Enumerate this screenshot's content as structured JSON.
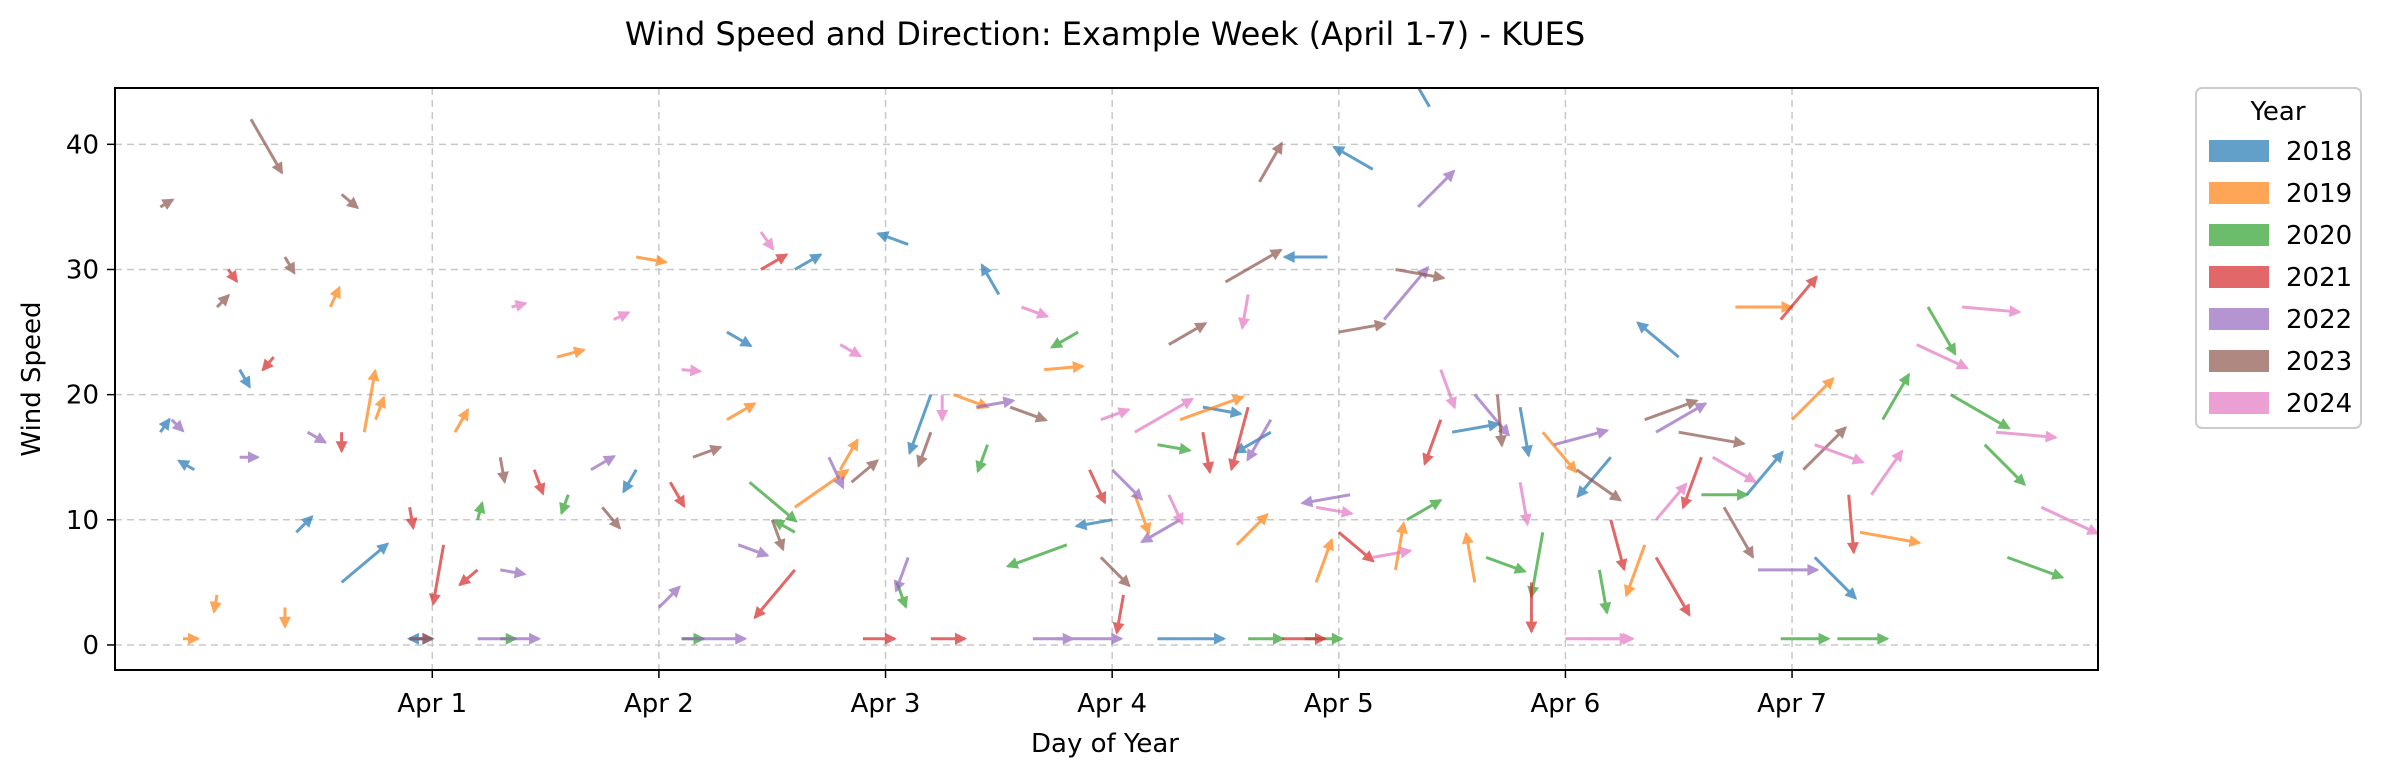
{
  "chart_data": {
    "type": "quiver",
    "title": "Wind Speed and Direction: Example Week (April 1-7) - KUES",
    "xlabel": "Day of Year",
    "ylabel": "Wind Speed",
    "xlim": [
      -1.4,
      7.35
    ],
    "ylim": [
      -2,
      44.5
    ],
    "x_ticks": [
      {
        "value": 0,
        "label": "Apr 1"
      },
      {
        "value": 1,
        "label": "Apr 2"
      },
      {
        "value": 2,
        "label": "Apr 3"
      },
      {
        "value": 3,
        "label": "Apr 4"
      },
      {
        "value": 4,
        "label": "Apr 5"
      },
      {
        "value": 5,
        "label": "Apr 6"
      },
      {
        "value": 6,
        "label": "Apr 7"
      }
    ],
    "y_ticks": [
      0,
      10,
      20,
      30,
      40
    ],
    "grid": true,
    "legend": {
      "title": "Year",
      "placement": "outside-right"
    },
    "series": [
      {
        "name": "2018",
        "color": "#1f77b4",
        "points": [
          [
            -1.2,
            17,
            35,
            0.5
          ],
          [
            -1.05,
            14,
            300,
            1.1
          ],
          [
            -0.85,
            22,
            150,
            1.7
          ],
          [
            -0.6,
            9,
            45,
            2.3
          ],
          [
            0.0,
            0.5,
            270,
            2.6
          ],
          [
            0.9,
            14,
            210,
            3.2
          ],
          [
            1.3,
            25,
            120,
            3.8
          ],
          [
            1.6,
            30,
            60,
            4.4
          ],
          [
            2.1,
            32,
            290,
            5.0
          ],
          [
            2.5,
            28,
            330,
            5.6
          ],
          [
            3.0,
            10,
            260,
            6.2
          ],
          [
            3.4,
            19,
            100,
            6.8
          ],
          [
            3.7,
            17,
            240,
            7.4
          ],
          [
            3.95,
            31,
            270,
            8.0
          ],
          [
            4.15,
            38,
            300,
            8.6
          ],
          [
            4.5,
            17,
            80,
            9.2
          ],
          [
            4.8,
            19,
            170,
            9.8
          ],
          [
            5.2,
            15,
            220,
            10.4
          ],
          [
            5.5,
            23,
            310,
            11.0
          ],
          [
            5.8,
            12,
            40,
            11.6
          ],
          [
            6.1,
            7,
            135,
            12.2
          ],
          [
            -0.4,
            5,
            50,
            12.8
          ],
          [
            2.2,
            20,
            200,
            13.4
          ],
          [
            4.4,
            43,
            330,
            14.0
          ],
          [
            3.2,
            0.5,
            90,
            14.6
          ]
        ]
      },
      {
        "name": "2019",
        "color": "#ff7f0e",
        "points": [
          [
            -1.1,
            0.5,
            90,
            0.3
          ],
          [
            -0.95,
            4,
            190,
            0.9
          ],
          [
            -0.65,
            3,
            180,
            1.5
          ],
          [
            -0.45,
            27,
            25,
            2.1
          ],
          [
            -0.25,
            18,
            20,
            2.7
          ],
          [
            0.1,
            17,
            30,
            3.3
          ],
          [
            0.55,
            23,
            75,
            3.9
          ],
          [
            0.9,
            31,
            100,
            4.5
          ],
          [
            1.3,
            18,
            60,
            5.1
          ],
          [
            1.8,
            14,
            30,
            5.7
          ],
          [
            2.3,
            20,
            110,
            6.3
          ],
          [
            2.7,
            22,
            85,
            6.9
          ],
          [
            3.1,
            12,
            160,
            7.5
          ],
          [
            3.55,
            8,
            45,
            8.1
          ],
          [
            3.9,
            5,
            20,
            8.7
          ],
          [
            4.25,
            6,
            10,
            9.3
          ],
          [
            4.6,
            5,
            350,
            9.9
          ],
          [
            4.9,
            17,
            140,
            10.5
          ],
          [
            5.35,
            8,
            200,
            11.1
          ],
          [
            5.75,
            27,
            90,
            11.7
          ],
          [
            6.0,
            18,
            45,
            12.3
          ],
          [
            6.3,
            9,
            100,
            12.9
          ],
          [
            -0.3,
            17,
            10,
            13.5
          ],
          [
            1.6,
            11,
            55,
            14.1
          ],
          [
            3.3,
            18,
            70,
            14.7
          ]
        ]
      },
      {
        "name": "2020",
        "color": "#2ca02c",
        "points": [
          [
            0.3,
            0.5,
            90,
            0.4
          ],
          [
            0.2,
            10,
            15,
            1.0
          ],
          [
            0.6,
            12,
            200,
            1.6
          ],
          [
            1.1,
            0.5,
            90,
            2.2
          ],
          [
            1.6,
            9,
            300,
            2.8
          ],
          [
            2.05,
            5,
            160,
            3.4
          ],
          [
            2.45,
            16,
            200,
            4.0
          ],
          [
            2.85,
            25,
            240,
            4.6
          ],
          [
            3.2,
            16,
            100,
            5.2
          ],
          [
            3.6,
            0.5,
            90,
            5.8
          ],
          [
            3.85,
            0.5,
            90,
            6.4
          ],
          [
            4.3,
            10,
            60,
            7.0
          ],
          [
            4.65,
            7,
            110,
            7.6
          ],
          [
            5.15,
            6,
            170,
            8.2
          ],
          [
            5.6,
            12,
            90,
            8.8
          ],
          [
            5.95,
            0.5,
            90,
            9.4
          ],
          [
            6.2,
            0.5,
            90,
            10.0
          ],
          [
            6.4,
            18,
            30,
            10.6
          ],
          [
            6.6,
            27,
            150,
            11.2
          ],
          [
            6.85,
            16,
            135,
            11.8
          ],
          [
            6.95,
            7,
            110,
            12.4
          ],
          [
            1.4,
            13,
            130,
            13.0
          ],
          [
            2.8,
            8,
            250,
            13.6
          ],
          [
            4.9,
            9,
            190,
            14.2
          ],
          [
            6.7,
            20,
            120,
            14.8
          ]
        ]
      },
      {
        "name": "2021",
        "color": "#d62728",
        "points": [
          [
            -0.9,
            30,
            145,
            0.2
          ],
          [
            -0.7,
            23,
            220,
            0.8
          ],
          [
            -0.4,
            17,
            180,
            1.4
          ],
          [
            -0.1,
            11,
            170,
            2.0
          ],
          [
            0.2,
            6,
            230,
            2.6
          ],
          [
            0.45,
            14,
            160,
            3.2
          ],
          [
            1.05,
            13,
            150,
            3.8
          ],
          [
            1.45,
            30,
            60,
            4.4
          ],
          [
            1.9,
            0.5,
            90,
            5.0
          ],
          [
            2.2,
            0.5,
            90,
            5.6
          ],
          [
            2.9,
            14,
            155,
            6.2
          ],
          [
            3.05,
            4,
            190,
            6.8
          ],
          [
            3.4,
            17,
            170,
            7.4
          ],
          [
            3.75,
            0.5,
            90,
            8.0
          ],
          [
            4.0,
            9,
            130,
            8.6
          ],
          [
            4.45,
            18,
            200,
            9.2
          ],
          [
            4.85,
            5,
            180,
            9.8
          ],
          [
            5.2,
            10,
            165,
            10.4
          ],
          [
            5.6,
            15,
            200,
            11.0
          ],
          [
            5.95,
            26,
            40,
            11.6
          ],
          [
            6.25,
            12,
            175,
            12.2
          ],
          [
            0.05,
            8,
            190,
            12.8
          ],
          [
            1.6,
            6,
            220,
            13.4
          ],
          [
            3.6,
            19,
            195,
            14.0
          ],
          [
            5.4,
            7,
            150,
            14.6
          ]
        ]
      },
      {
        "name": "2022",
        "color": "#9467bd",
        "points": [
          [
            -1.15,
            18,
            135,
            0.6
          ],
          [
            -0.85,
            15,
            90,
            1.2
          ],
          [
            -0.55,
            17,
            120,
            1.8
          ],
          [
            -0.1,
            0.5,
            90,
            2.4
          ],
          [
            0.3,
            6,
            100,
            3.0
          ],
          [
            0.7,
            14,
            60,
            3.6
          ],
          [
            1.0,
            3,
            45,
            4.2
          ],
          [
            1.35,
            8,
            110,
            4.8
          ],
          [
            1.75,
            15,
            155,
            5.4
          ],
          [
            2.1,
            7,
            200,
            6.0
          ],
          [
            2.4,
            19,
            80,
            6.6
          ],
          [
            2.65,
            0.5,
            90,
            7.2
          ],
          [
            3.0,
            14,
            135,
            7.8
          ],
          [
            3.3,
            10,
            240,
            8.4
          ],
          [
            3.7,
            18,
            210,
            9.0
          ],
          [
            4.05,
            12,
            260,
            9.6
          ],
          [
            4.35,
            35,
            45,
            10.2
          ],
          [
            4.6,
            20,
            140,
            10.8
          ],
          [
            4.95,
            16,
            75,
            11.4
          ],
          [
            5.4,
            17,
            60,
            12.0
          ],
          [
            5.85,
            6,
            90,
            12.6
          ],
          [
            0.2,
            0.5,
            90,
            13.2
          ],
          [
            1.1,
            0.5,
            90,
            13.8
          ],
          [
            2.75,
            0.5,
            90,
            14.4
          ],
          [
            4.2,
            26,
            40,
            15.0
          ]
        ]
      },
      {
        "name": "2023",
        "color": "#8c564b",
        "points": [
          [
            -1.2,
            35,
            60,
            0.1
          ],
          [
            -0.95,
            27,
            45,
            0.7
          ],
          [
            -0.65,
            31,
            150,
            1.3
          ],
          [
            -0.4,
            36,
            130,
            1.9
          ],
          [
            -0.1,
            0.5,
            90,
            2.5
          ],
          [
            0.3,
            15,
            170,
            3.1
          ],
          [
            0.75,
            11,
            140,
            3.7
          ],
          [
            1.15,
            15,
            70,
            4.3
          ],
          [
            1.5,
            10,
            160,
            4.9
          ],
          [
            1.85,
            13,
            50,
            5.5
          ],
          [
            2.2,
            17,
            200,
            6.1
          ],
          [
            2.55,
            19,
            110,
            6.7
          ],
          [
            2.95,
            7,
            135,
            7.3
          ],
          [
            3.25,
            24,
            60,
            7.9
          ],
          [
            3.65,
            37,
            30,
            8.5
          ],
          [
            4.0,
            25,
            80,
            9.1
          ],
          [
            4.25,
            30,
            100,
            9.7
          ],
          [
            4.7,
            20,
            175,
            10.3
          ],
          [
            5.05,
            14,
            125,
            10.9
          ],
          [
            5.35,
            18,
            70,
            11.5
          ],
          [
            5.7,
            11,
            150,
            12.1
          ],
          [
            6.05,
            14,
            45,
            12.7
          ],
          [
            -0.8,
            42,
            150,
            13.3
          ],
          [
            3.5,
            29,
            60,
            13.9
          ],
          [
            5.5,
            17,
            100,
            14.5
          ]
        ]
      },
      {
        "name": "2024",
        "color": "#e377c2",
        "points": [
          [
            0.35,
            27,
            75,
            0.15
          ],
          [
            0.8,
            26,
            65,
            0.75
          ],
          [
            1.1,
            22,
            95,
            1.35
          ],
          [
            1.45,
            33,
            145,
            1.95
          ],
          [
            1.8,
            24,
            120,
            2.55
          ],
          [
            2.25,
            20,
            180,
            3.15
          ],
          [
            2.6,
            27,
            110,
            3.75
          ],
          [
            2.95,
            18,
            70,
            4.35
          ],
          [
            3.25,
            12,
            155,
            4.95
          ],
          [
            3.6,
            28,
            190,
            5.55
          ],
          [
            3.9,
            11,
            100,
            6.15
          ],
          [
            4.15,
            7,
            80,
            6.75
          ],
          [
            4.45,
            22,
            160,
            7.35
          ],
          [
            4.8,
            13,
            170,
            7.95
          ],
          [
            5.1,
            0.5,
            90,
            8.55
          ],
          [
            5.4,
            10,
            40,
            9.15
          ],
          [
            5.65,
            15,
            120,
            9.75
          ],
          [
            6.1,
            16,
            110,
            10.35
          ],
          [
            6.35,
            12,
            35,
            10.95
          ],
          [
            6.55,
            24,
            115,
            11.55
          ],
          [
            6.75,
            27,
            95,
            12.15
          ],
          [
            6.9,
            17,
            95,
            12.75
          ],
          [
            7.1,
            11,
            115,
            13.35
          ],
          [
            5.0,
            0.5,
            90,
            13.95
          ],
          [
            3.1,
            17,
            60,
            14.55
          ]
        ]
      }
    ]
  }
}
